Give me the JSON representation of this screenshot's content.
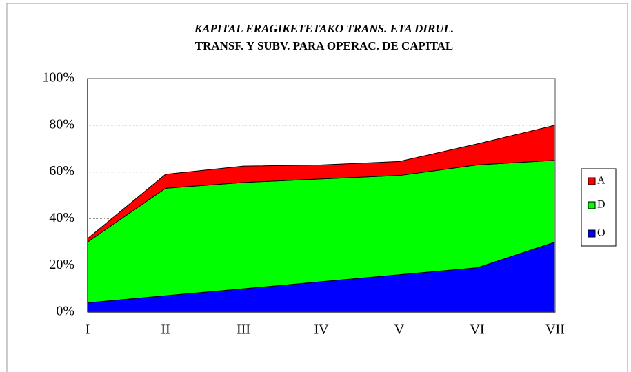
{
  "chart_data": {
    "type": "area",
    "stacked": true,
    "title": "KAPITAL ERAGIKETETAKO TRANS. ETA DIRUL.",
    "subtitle": "TRANSF. Y SUBV. PARA OPERAC. DE CAPITAL",
    "categories": [
      "I",
      "II",
      "III",
      "IV",
      "V",
      "VI",
      "VII"
    ],
    "series": [
      {
        "name": "O",
        "color": "#0000ff",
        "values": [
          4,
          7,
          10,
          13,
          16,
          19,
          30
        ]
      },
      {
        "name": "D",
        "color": "#00ff00",
        "values": [
          26,
          46,
          45.5,
          44,
          42.5,
          44,
          35
        ]
      },
      {
        "name": "A",
        "color": "#ff0000",
        "values": [
          1.5,
          6,
          7,
          6,
          6,
          9,
          15
        ]
      }
    ],
    "ylim": [
      0,
      100
    ],
    "yticks": [
      {
        "value": 0,
        "label": "0%"
      },
      {
        "value": 20,
        "label": "20%"
      },
      {
        "value": 40,
        "label": "40%"
      },
      {
        "value": 60,
        "label": "60%"
      },
      {
        "value": 80,
        "label": "80%"
      },
      {
        "value": 100,
        "label": "100%"
      }
    ],
    "grid": true,
    "legend": "right"
  }
}
